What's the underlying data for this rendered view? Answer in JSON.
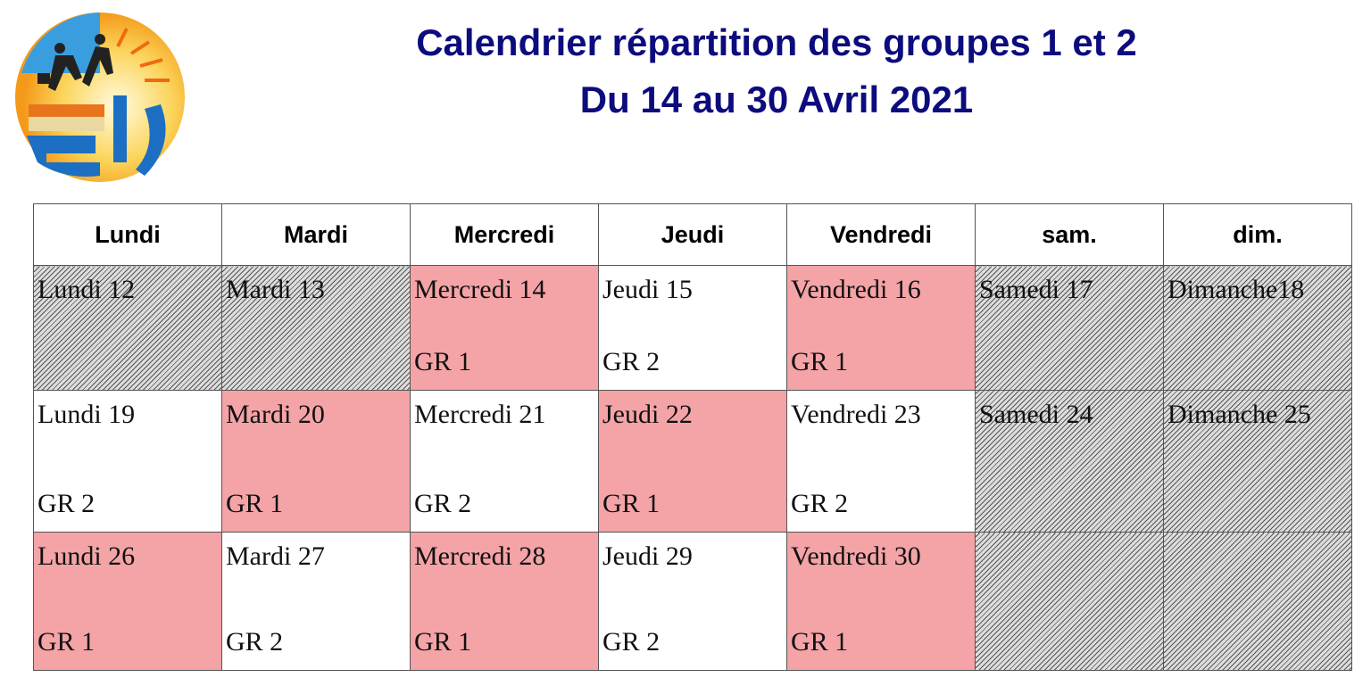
{
  "title_line1": "Calendrier  répartition des groupes 1 et 2",
  "title_line2": "Du 14 au 30 Avril 2021",
  "logo_text": "ELV",
  "colors": {
    "title": "#0c0c7e",
    "group1": "#f4a3a7",
    "group2": "#ffffff",
    "off": "hatched-grey"
  },
  "headers": [
    "Lundi",
    "Mardi",
    "Mercredi",
    "Jeudi",
    "Vendredi",
    "sam.",
    "dim."
  ],
  "weeks": [
    [
      {
        "day": "Lundi 12",
        "group": "",
        "style": "hatch"
      },
      {
        "day": "Mardi 13",
        "group": "",
        "style": "hatch"
      },
      {
        "day": "Mercredi 14",
        "group": "GR 1",
        "style": "pink"
      },
      {
        "day": "Jeudi  15",
        "group": "GR 2",
        "style": "white"
      },
      {
        "day": "Vendredi 16",
        "group": "GR 1",
        "style": "pink"
      },
      {
        "day": "Samedi 17",
        "group": "",
        "style": "hatch"
      },
      {
        "day": "Dimanche18",
        "group": "",
        "style": "hatch"
      }
    ],
    [
      {
        "day": "Lundi 19",
        "group": "GR 2",
        "style": "white"
      },
      {
        "day": "Mardi 20",
        "group": "GR 1",
        "style": "pink"
      },
      {
        "day": "Mercredi 21",
        "group": "GR 2",
        "style": "white"
      },
      {
        "day": "Jeudi 22",
        "group": "GR 1",
        "style": "pink"
      },
      {
        "day": "Vendredi 23",
        "group": "GR 2",
        "style": "white"
      },
      {
        "day": "Samedi 24",
        "group": "",
        "style": "hatch"
      },
      {
        "day": "Dimanche 25",
        "group": "",
        "style": "hatch"
      }
    ],
    [
      {
        "day": "Lundi 26",
        "group": "GR 1",
        "style": "pink"
      },
      {
        "day": "Mardi 27",
        "group": "GR 2",
        "style": "white"
      },
      {
        "day": "Mercredi 28",
        "group": "GR 1",
        "style": "pink"
      },
      {
        "day": "Jeudi 29",
        "group": "GR 2",
        "style": "white"
      },
      {
        "day": "Vendredi 30",
        "group": "GR 1",
        "style": "pink"
      },
      {
        "day": "",
        "group": "",
        "style": "hatch"
      },
      {
        "day": "",
        "group": "",
        "style": "hatch"
      }
    ]
  ]
}
